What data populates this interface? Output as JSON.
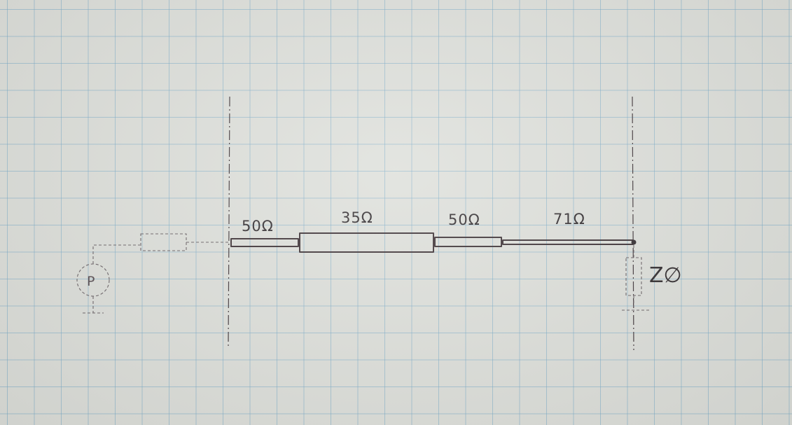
{
  "diagram": {
    "segments": [
      {
        "label": "50Ω"
      },
      {
        "label": "35Ω"
      },
      {
        "label": "50Ω"
      },
      {
        "label": "71Ω"
      }
    ],
    "port_label": "P",
    "load_label": "Z∅"
  }
}
